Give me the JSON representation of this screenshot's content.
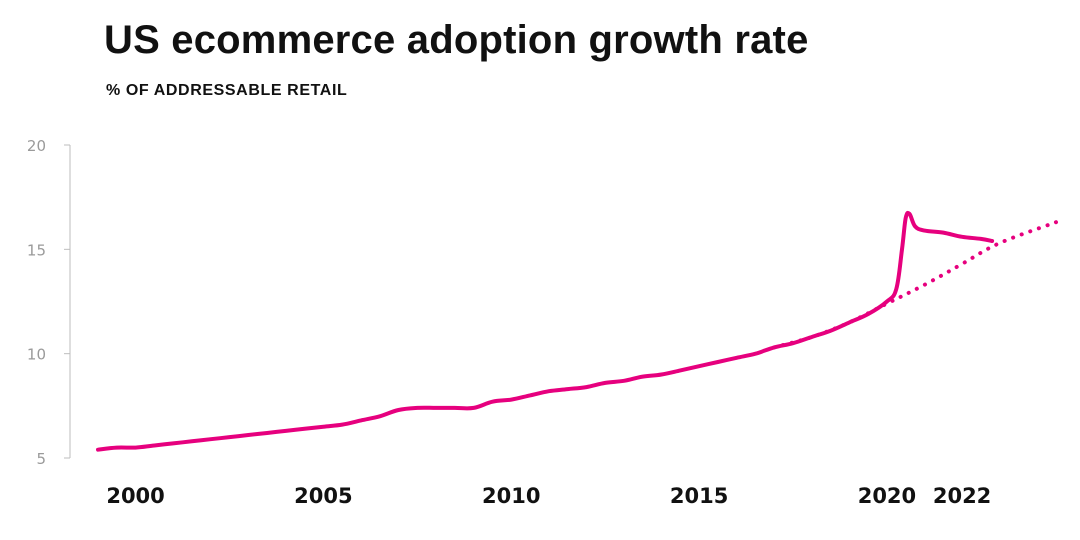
{
  "header": {
    "title": "US ecommerce adoption growth rate",
    "subtitle": "% OF ADDRESSABLE RETAIL"
  },
  "colors": {
    "accent": "#e6007e",
    "axis": "#bdbdbd",
    "tick_text": "#9a9a9a",
    "text": "#111111"
  },
  "chart_data": {
    "type": "line",
    "title": "US ecommerce adoption growth rate",
    "subtitle": "% OF ADDRESSABLE RETAIL",
    "xlabel": "",
    "ylabel": "",
    "xlim": [
      1999.0,
      2024.5
    ],
    "ylim": [
      5,
      20
    ],
    "yticks": [
      5,
      10,
      15,
      20
    ],
    "xticks": [
      2000,
      2005,
      2010,
      2015,
      2020,
      2022
    ],
    "grid": false,
    "legend": "none",
    "series": [
      {
        "style": "solid",
        "points": [
          [
            1999.0,
            5.4
          ],
          [
            1999.5,
            5.5
          ],
          [
            2000.0,
            5.5
          ],
          [
            2000.5,
            5.6
          ],
          [
            2001.0,
            5.7
          ],
          [
            2001.5,
            5.8
          ],
          [
            2002.0,
            5.9
          ],
          [
            2002.5,
            6.0
          ],
          [
            2003.0,
            6.1
          ],
          [
            2003.5,
            6.2
          ],
          [
            2004.0,
            6.3
          ],
          [
            2004.5,
            6.4
          ],
          [
            2005.0,
            6.5
          ],
          [
            2005.5,
            6.6
          ],
          [
            2006.0,
            6.8
          ],
          [
            2006.5,
            7.0
          ],
          [
            2007.0,
            7.3
          ],
          [
            2007.5,
            7.4
          ],
          [
            2008.0,
            7.4
          ],
          [
            2008.5,
            7.4
          ],
          [
            2009.0,
            7.4
          ],
          [
            2009.5,
            7.7
          ],
          [
            2010.0,
            7.8
          ],
          [
            2010.5,
            8.0
          ],
          [
            2011.0,
            8.2
          ],
          [
            2011.5,
            8.3
          ],
          [
            2012.0,
            8.4
          ],
          [
            2012.5,
            8.6
          ],
          [
            2013.0,
            8.7
          ],
          [
            2013.5,
            8.9
          ],
          [
            2014.0,
            9.0
          ],
          [
            2014.5,
            9.2
          ],
          [
            2015.0,
            9.4
          ],
          [
            2015.5,
            9.6
          ],
          [
            2016.0,
            9.8
          ],
          [
            2016.5,
            10.0
          ],
          [
            2017.0,
            10.3
          ],
          [
            2017.5,
            10.5
          ],
          [
            2018.0,
            10.8
          ],
          [
            2018.5,
            11.1
          ],
          [
            2019.0,
            11.5
          ],
          [
            2019.5,
            11.9
          ],
          [
            2020.0,
            12.5
          ],
          [
            2020.25,
            13.1
          ],
          [
            2020.4,
            15.0
          ],
          [
            2020.5,
            16.5
          ],
          [
            2020.6,
            16.7
          ],
          [
            2020.75,
            16.1
          ],
          [
            2021.0,
            15.9
          ],
          [
            2021.5,
            15.8
          ],
          [
            2022.0,
            15.6
          ],
          [
            2022.5,
            15.5
          ],
          [
            2022.8,
            15.4
          ]
        ]
      },
      {
        "style": "dotted",
        "points": [
          [
            2017.0,
            10.3
          ],
          [
            2018.0,
            10.8
          ],
          [
            2019.0,
            11.5
          ],
          [
            2020.0,
            12.4
          ],
          [
            2021.0,
            13.3
          ],
          [
            2022.0,
            14.3
          ],
          [
            2023.0,
            15.3
          ],
          [
            2024.5,
            16.3
          ]
        ]
      }
    ]
  }
}
